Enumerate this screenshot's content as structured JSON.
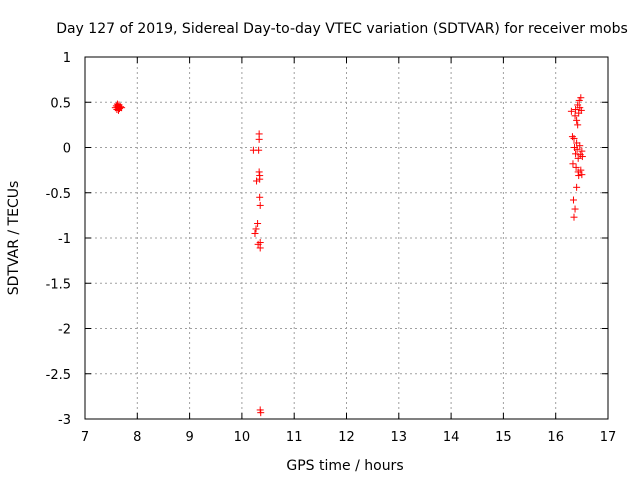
{
  "chart_data": {
    "type": "scatter",
    "title": "Day 127 of 2019, Sidereal Day-to-day VTEC variation (SDTVAR) for receiver mobs",
    "xlabel": "GPS time / hours",
    "ylabel": "SDTVAR / TECUs",
    "xlim": [
      7,
      17
    ],
    "ylim": [
      -3,
      1
    ],
    "x_ticks": [
      "7",
      "8",
      "9",
      "10",
      "11",
      "12",
      "13",
      "14",
      "15",
      "16",
      "17"
    ],
    "y_ticks": [
      "1",
      "0.5",
      "0",
      "-0.5",
      "-1",
      "-1.5",
      "-2",
      "-2.5",
      "-3"
    ],
    "grid": true,
    "marker": "+",
    "color": "#ff0000",
    "series": [
      {
        "points": [
          [
            7.58,
            0.44
          ],
          [
            7.6,
            0.46
          ],
          [
            7.61,
            0.42
          ],
          [
            7.62,
            0.48
          ],
          [
            7.63,
            0.45
          ],
          [
            7.64,
            0.41
          ],
          [
            7.65,
            0.47
          ],
          [
            7.66,
            0.43
          ],
          [
            7.68,
            0.45
          ],
          [
            7.7,
            0.44
          ],
          [
            10.22,
            -0.03
          ],
          [
            10.25,
            -0.95
          ],
          [
            10.27,
            -0.9
          ],
          [
            10.28,
            -0.37
          ],
          [
            10.3,
            -0.84
          ],
          [
            10.31,
            -1.07
          ],
          [
            10.32,
            -0.03
          ],
          [
            10.33,
            0.09
          ],
          [
            10.33,
            0.15
          ],
          [
            10.33,
            -0.27
          ],
          [
            10.34,
            -0.31
          ],
          [
            10.34,
            -0.35
          ],
          [
            10.34,
            -0.55
          ],
          [
            10.35,
            -0.64
          ],
          [
            10.35,
            -1.05
          ],
          [
            10.35,
            -1.11
          ],
          [
            10.35,
            -2.9
          ],
          [
            10.36,
            -2.93
          ],
          [
            16.3,
            0.4
          ],
          [
            16.32,
            0.12
          ],
          [
            16.33,
            -0.18
          ],
          [
            16.34,
            -0.58
          ],
          [
            16.35,
            0.1
          ],
          [
            16.35,
            -0.77
          ],
          [
            16.36,
            0.0
          ],
          [
            16.37,
            -0.68
          ],
          [
            16.37,
            0.35
          ],
          [
            16.38,
            0.42
          ],
          [
            16.38,
            -0.07
          ],
          [
            16.39,
            -0.22
          ],
          [
            16.4,
            0.05
          ],
          [
            16.4,
            0.3
          ],
          [
            16.4,
            -0.44
          ],
          [
            16.41,
            -0.02
          ],
          [
            16.42,
            0.47
          ],
          [
            16.42,
            0.25
          ],
          [
            16.43,
            -0.12
          ],
          [
            16.43,
            -0.27
          ],
          [
            16.44,
            0.38
          ],
          [
            16.44,
            -0.31
          ],
          [
            16.45,
            0.52
          ],
          [
            16.46,
            0.44
          ],
          [
            16.46,
            0.02
          ],
          [
            16.47,
            -0.08
          ],
          [
            16.48,
            0.55
          ],
          [
            16.48,
            -0.25
          ],
          [
            16.49,
            0.41
          ],
          [
            16.5,
            -0.04
          ],
          [
            16.5,
            -0.3
          ],
          [
            16.51,
            -0.1
          ]
        ]
      }
    ]
  }
}
